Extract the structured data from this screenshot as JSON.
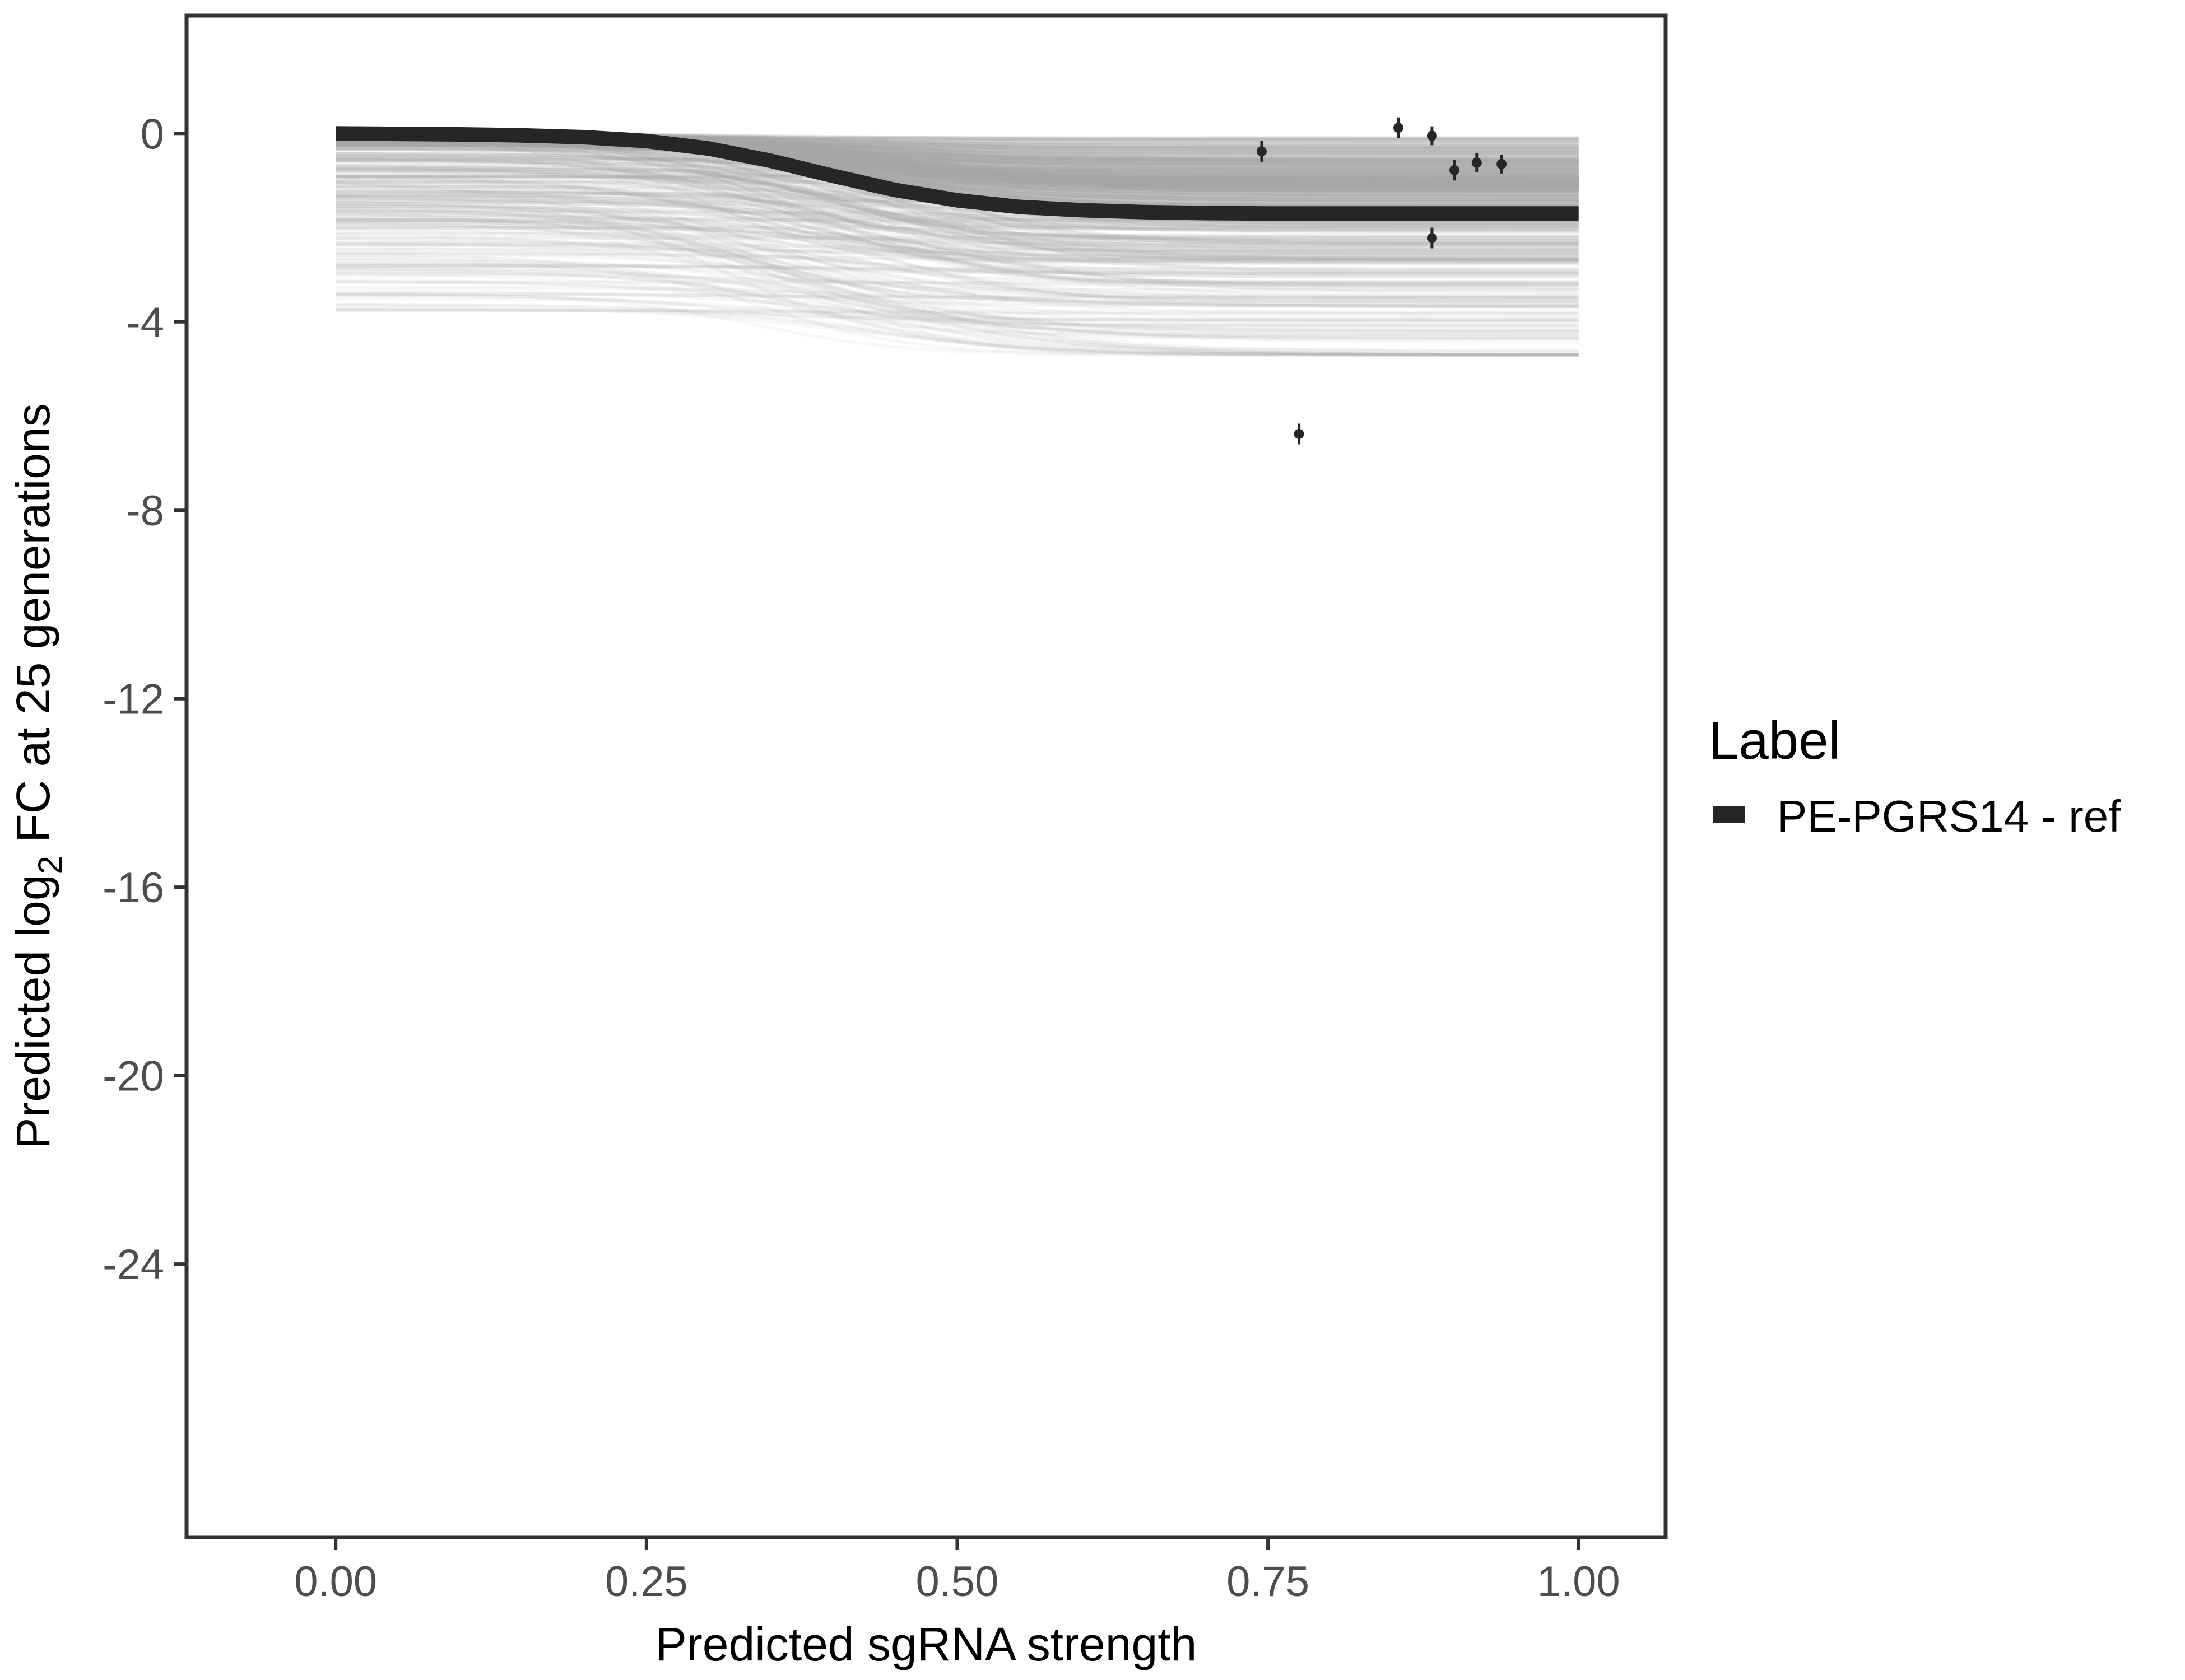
{
  "chart_data": {
    "type": "line",
    "title": "",
    "xlabel": "Predicted sgRNA strength",
    "ylabel": {
      "prefix": "Predicted  log",
      "subscript": "2",
      "suffix": " FC at 25 generations"
    },
    "xlim": [
      -0.12,
      1.07
    ],
    "ylim": [
      -29.8,
      2.5
    ],
    "x_ticks": [
      0.0,
      0.25,
      0.5,
      0.75,
      1.0
    ],
    "x_tick_labels": [
      "0.00",
      "0.25",
      "0.50",
      "0.75",
      "1.00"
    ],
    "y_ticks": [
      0,
      -4,
      -8,
      -12,
      -16,
      -20,
      -24
    ],
    "y_tick_labels": [
      "0",
      "-4",
      "-8",
      "-12",
      "-16",
      "-20",
      "-24"
    ],
    "grid": false,
    "legend": {
      "title": "Label",
      "placement": "right",
      "entries": [
        {
          "label": "PE-PGRS14 - ref",
          "color": "#262626"
        }
      ]
    },
    "series": [
      {
        "name": "PE-PGRS14 - ref",
        "kind": "fit-line",
        "color": "#262626",
        "x": [
          0.0,
          0.05,
          0.1,
          0.15,
          0.2,
          0.25,
          0.3,
          0.35,
          0.4,
          0.45,
          0.5,
          0.55,
          0.6,
          0.65,
          0.7,
          0.75,
          0.8,
          0.85,
          0.9,
          0.95,
          1.0
        ],
        "y": [
          0.0,
          -0.01,
          -0.02,
          -0.04,
          -0.08,
          -0.16,
          -0.32,
          -0.58,
          -0.9,
          -1.2,
          -1.42,
          -1.56,
          -1.63,
          -1.67,
          -1.69,
          -1.7,
          -1.7,
          -1.7,
          -1.7,
          -1.7,
          -1.7
        ]
      },
      {
        "kind": "posterior-draws",
        "color": "#a6a6a6",
        "draw_count": 220,
        "start_range": [
          0.0,
          -3.8
        ],
        "end_range": [
          0.0,
          -4.7
        ],
        "midpoint_range": [
          0.3,
          0.48
        ]
      },
      {
        "kind": "observed-points",
        "color": "#262626",
        "points": [
          {
            "x": 0.745,
            "y": -0.38,
            "err": 0.22
          },
          {
            "x": 0.775,
            "y": -6.38,
            "err": 0.22
          },
          {
            "x": 0.855,
            "y": 0.12,
            "err": 0.22
          },
          {
            "x": 0.882,
            "y": -0.05,
            "err": 0.2
          },
          {
            "x": 0.882,
            "y": -2.22,
            "err": 0.22
          },
          {
            "x": 0.9,
            "y": -0.78,
            "err": 0.22
          },
          {
            "x": 0.918,
            "y": -0.62,
            "err": 0.2
          },
          {
            "x": 0.938,
            "y": -0.65,
            "err": 0.2
          }
        ]
      }
    ]
  }
}
